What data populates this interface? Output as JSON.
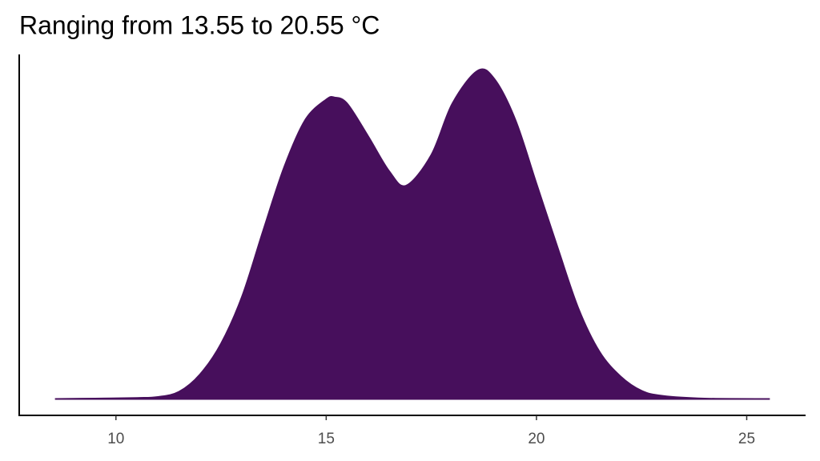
{
  "chart_data": {
    "type": "area",
    "title": "Ranging from 13.55 to 20.55 °C",
    "x": [
      8.55,
      9.5,
      10.5,
      11,
      11.5,
      12,
      12.5,
      13,
      13.5,
      14,
      14.5,
      15,
      15.2,
      15.5,
      16,
      16.5,
      16.9,
      17.5,
      18,
      18.6,
      19,
      19.5,
      20,
      20.5,
      21,
      21.5,
      22,
      22.5,
      23,
      24,
      25.55
    ],
    "values": [
      0,
      0.0002,
      0.0005,
      0.001,
      0.0035,
      0.012,
      0.027,
      0.05,
      0.082,
      0.113,
      0.136,
      0.146,
      0.147,
      0.144,
      0.128,
      0.111,
      0.104,
      0.119,
      0.144,
      0.16,
      0.156,
      0.136,
      0.105,
      0.074,
      0.044,
      0.023,
      0.011,
      0.004,
      0.0015,
      0.0002,
      0
    ],
    "color": "#470f5c",
    "xlim": [
      7.7,
      26.4
    ],
    "xticks": [
      10,
      15,
      20,
      25
    ],
    "ylim": [
      -0.008,
      0.168
    ]
  }
}
